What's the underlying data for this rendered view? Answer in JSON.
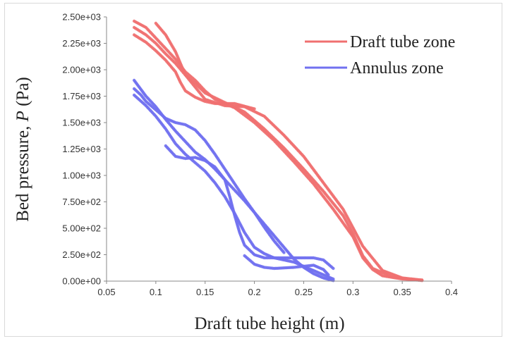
{
  "chart_data": {
    "type": "scatter",
    "title": "",
    "xlabel": "Draft tube height (m)",
    "ylabel_prefix": "Bed pressure, ",
    "ylabel_var": "P",
    "ylabel_unit": " (Pa)",
    "xlim": [
      0.05,
      0.4
    ],
    "ylim": [
      0,
      2500
    ],
    "x_ticks": [
      0.05,
      0.1,
      0.15,
      0.2,
      0.25,
      0.3,
      0.35,
      0.4
    ],
    "x_tick_labels": [
      "0.05",
      "0.1",
      "0.15",
      "0.2",
      "0.25",
      "0.3",
      "0.35",
      "0.4"
    ],
    "y_ticks": [
      0,
      250,
      500,
      750,
      1000,
      1250,
      1500,
      1750,
      2000,
      2250,
      2500
    ],
    "y_tick_labels": [
      "0.00e+00",
      "2.50e+02",
      "5.00e+02",
      "7.50e+02",
      "1.00e+03",
      "1.25e+03",
      "1.50e+03",
      "1.75e+03",
      "2.00e+03",
      "2.25e+03",
      "2.50e+03"
    ],
    "grid": false,
    "legend_position": "top-right",
    "series": [
      {
        "name": "Draft tube zone",
        "color": "#f07070",
        "traces": [
          {
            "x": [
              0.078,
              0.09,
              0.1,
              0.11,
              0.12,
              0.13,
              0.14,
              0.15,
              0.16,
              0.18,
              0.2,
              0.22,
              0.24,
              0.26,
              0.28,
              0.3,
              0.31,
              0.32,
              0.33,
              0.35,
              0.37
            ],
            "y": [
              2460,
              2400,
              2300,
              2200,
              2100,
              1980,
              1900,
              1800,
              1720,
              1640,
              1500,
              1330,
              1130,
              920,
              680,
              420,
              220,
              110,
              50,
              20,
              10
            ]
          },
          {
            "x": [
              0.078,
              0.09,
              0.1,
              0.11,
              0.12,
              0.13,
              0.14,
              0.15,
              0.17,
              0.19,
              0.21,
              0.23,
              0.25,
              0.27,
              0.29,
              0.3,
              0.31,
              0.32,
              0.34,
              0.36,
              0.37
            ],
            "y": [
              2400,
              2330,
              2250,
              2150,
              2060,
              1950,
              1870,
              1780,
              1690,
              1600,
              1440,
              1260,
              1060,
              850,
              620,
              450,
              240,
              120,
              40,
              15,
              5
            ]
          },
          {
            "x": [
              0.078,
              0.09,
              0.1,
              0.11,
              0.12,
              0.125,
              0.13,
              0.14,
              0.15,
              0.16,
              0.18,
              0.2
            ],
            "y": [
              2330,
              2260,
              2180,
              2090,
              1980,
              1880,
              1800,
              1740,
              1700,
              1680,
              1680,
              1630
            ]
          },
          {
            "x": [
              0.1,
              0.11,
              0.12,
              0.13,
              0.15,
              0.17,
              0.19,
              0.21,
              0.23,
              0.25,
              0.27,
              0.29,
              0.31,
              0.33,
              0.35,
              0.37
            ],
            "y": [
              2440,
              2330,
              2170,
              1950,
              1720,
              1660,
              1650,
              1560,
              1380,
              1180,
              930,
              680,
              330,
              100,
              30,
              10
            ]
          }
        ]
      },
      {
        "name": "Annulus zone",
        "color": "#7070f0",
        "traces": [
          {
            "x": [
              0.078,
              0.09,
              0.1,
              0.11,
              0.12,
              0.13,
              0.14,
              0.15,
              0.16,
              0.17,
              0.18,
              0.19,
              0.2,
              0.21,
              0.22,
              0.23,
              0.24,
              0.25,
              0.26,
              0.27,
              0.28
            ],
            "y": [
              1900,
              1750,
              1650,
              1530,
              1420,
              1320,
              1220,
              1150,
              1060,
              960,
              860,
              760,
              650,
              540,
              430,
              320,
              210,
              130,
              70,
              30,
              5
            ]
          },
          {
            "x": [
              0.078,
              0.085,
              0.09,
              0.1,
              0.11,
              0.12,
              0.13,
              0.14,
              0.15,
              0.16,
              0.17,
              0.18,
              0.19,
              0.2,
              0.21,
              0.22,
              0.23
            ],
            "y": [
              1820,
              1760,
              1700,
              1620,
              1540,
              1500,
              1480,
              1430,
              1330,
              1200,
              1060,
              920,
              780,
              650,
              510,
              380,
              270
            ]
          },
          {
            "x": [
              0.078,
              0.09,
              0.1,
              0.11,
              0.12,
              0.13,
              0.14,
              0.15,
              0.16,
              0.17,
              0.18,
              0.19,
              0.2,
              0.21,
              0.22,
              0.24,
              0.26,
              0.28
            ],
            "y": [
              1760,
              1660,
              1560,
              1440,
              1300,
              1200,
              1120,
              1040,
              930,
              800,
              640,
              460,
              320,
              260,
              220,
              180,
              100,
              20
            ]
          },
          {
            "x": [
              0.11,
              0.12,
              0.13,
              0.14,
              0.15,
              0.16,
              0.17,
              0.175,
              0.18,
              0.185,
              0.19,
              0.2,
              0.21,
              0.22,
              0.24,
              0.26,
              0.27,
              0.28
            ],
            "y": [
              1280,
              1180,
              1160,
              1170,
              1140,
              1080,
              960,
              800,
              620,
              460,
              340,
              250,
              220,
              220,
              220,
              220,
              200,
              120
            ]
          },
          {
            "x": [
              0.19,
              0.2,
              0.21,
              0.22,
              0.24,
              0.25,
              0.26,
              0.27,
              0.275
            ],
            "y": [
              240,
              160,
              130,
              120,
              130,
              140,
              150,
              110,
              60
            ]
          }
        ]
      }
    ]
  }
}
